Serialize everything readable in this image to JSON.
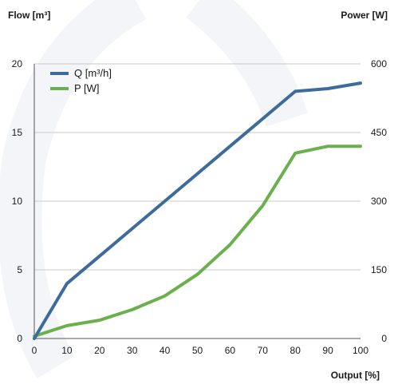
{
  "chart_data": {
    "type": "line",
    "title": "",
    "left_axis_title": "Flow [m³]",
    "right_axis_title": "Power [W]",
    "xlabel": "Output [%]",
    "x": [
      0,
      10,
      20,
      30,
      40,
      50,
      60,
      70,
      80,
      90,
      100
    ],
    "x_ticks": [
      "0",
      "10",
      "20",
      "30",
      "40",
      "50",
      "60",
      "70",
      "80",
      "90",
      "100"
    ],
    "xlim": [
      0,
      100
    ],
    "y_left_ticks": [
      "0",
      "5",
      "10",
      "15",
      "20"
    ],
    "ylim_left": [
      0,
      20
    ],
    "y_right_ticks": [
      "0",
      "150",
      "300",
      "450",
      "600"
    ],
    "ylim_right": [
      0,
      600
    ],
    "grid": "horizontal",
    "legend_position": "top-left",
    "series": [
      {
        "name": "Q [m³/h]",
        "axis": "left",
        "color": "#3d6b9b",
        "values": [
          0,
          4,
          6,
          8,
          10,
          12,
          14,
          16,
          18,
          18.2,
          18.6
        ]
      },
      {
        "name": "P [W]",
        "axis": "right",
        "color": "#6ab04c",
        "values": [
          5,
          28,
          40,
          63,
          93,
          140,
          205,
          290,
          405,
          420,
          420
        ]
      }
    ]
  }
}
